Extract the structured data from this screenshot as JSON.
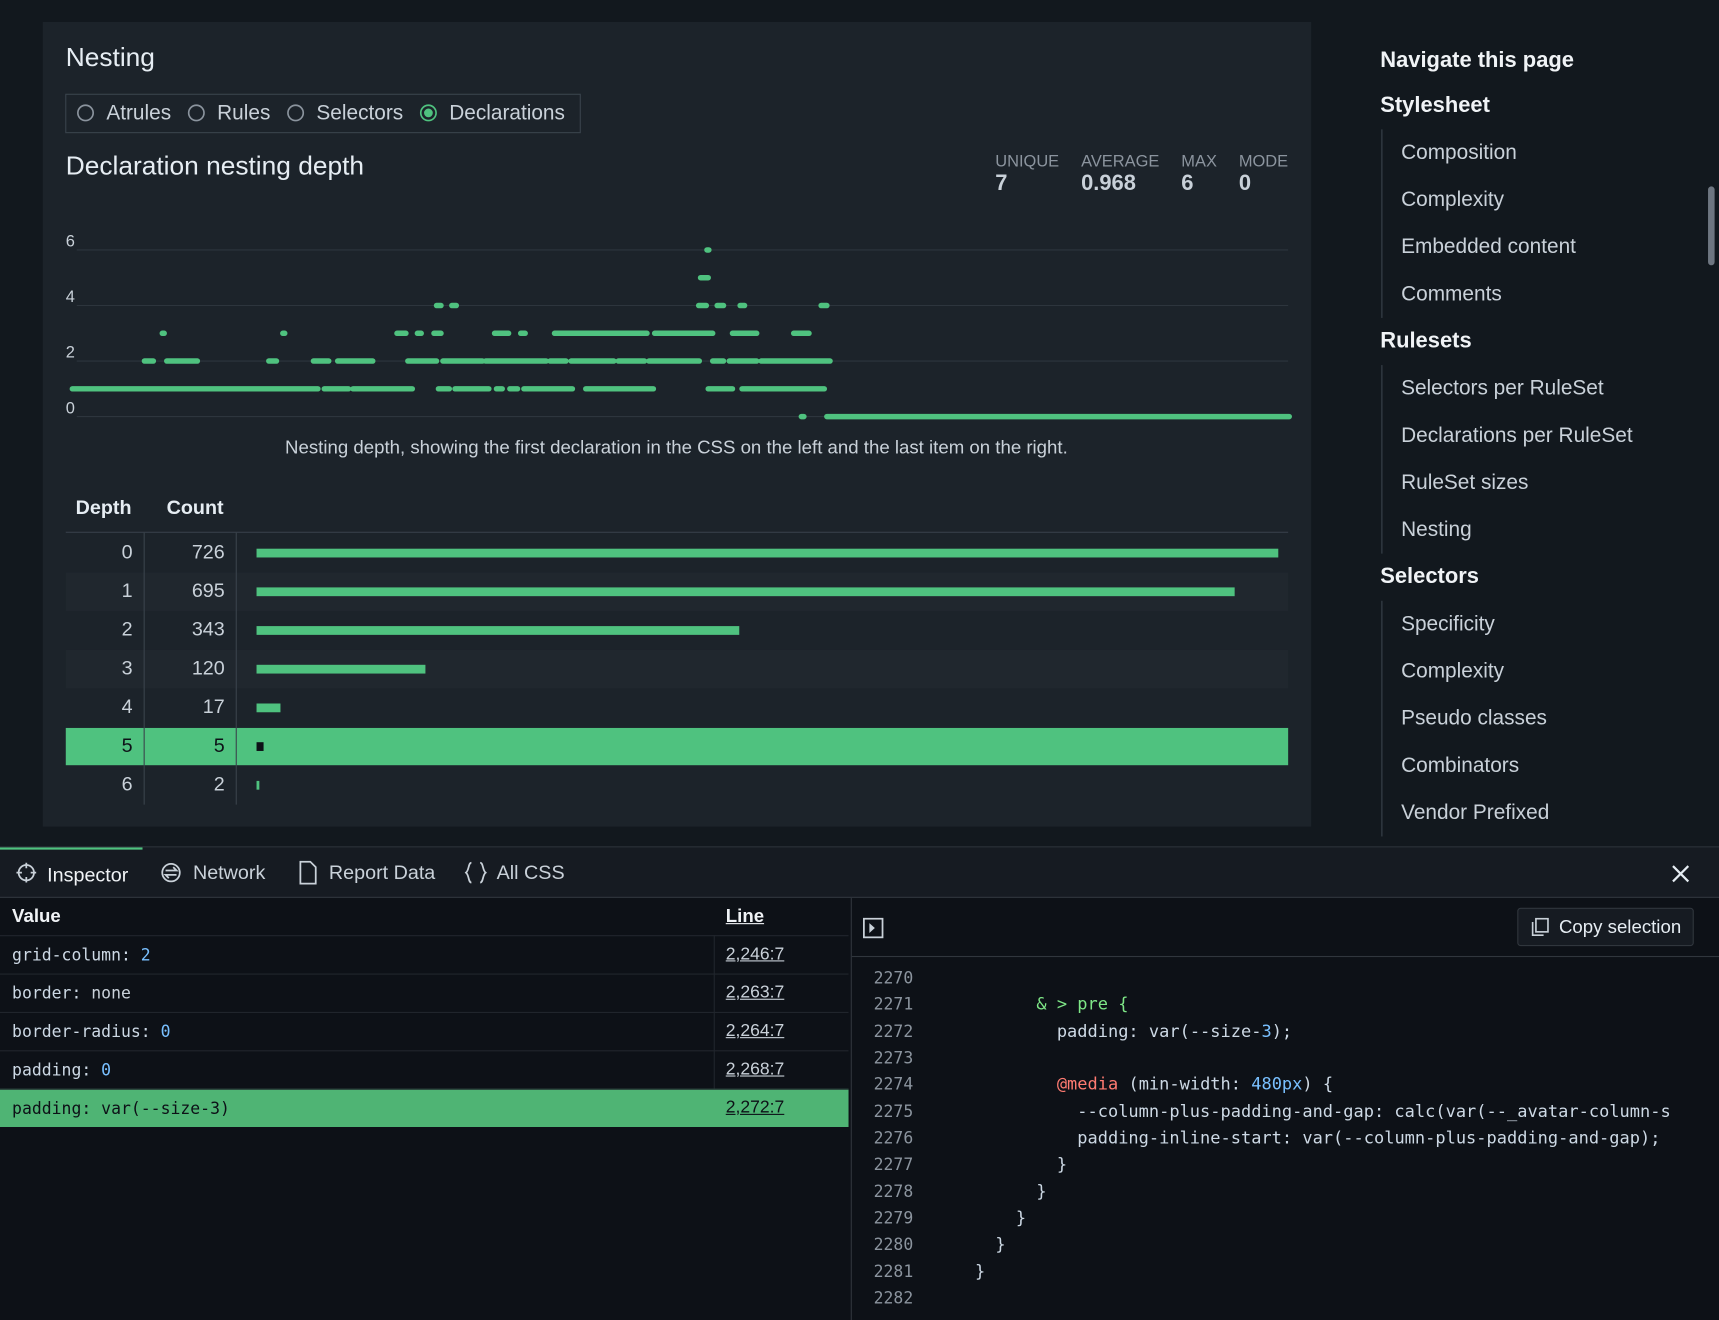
{
  "nesting": {
    "heading": "Nesting",
    "options": [
      {
        "label": "Atrules",
        "checked": false
      },
      {
        "label": "Rules",
        "checked": false
      },
      {
        "label": "Selectors",
        "checked": false
      },
      {
        "label": "Declarations",
        "checked": true
      }
    ]
  },
  "chart_data": {
    "type": "scatter",
    "title": "Declaration nesting depth",
    "stats": [
      {
        "label": "UNIQUE",
        "value": 7
      },
      {
        "label": "AVERAGE",
        "value": 0.968
      },
      {
        "label": "MAX",
        "value": 6
      },
      {
        "label": "MODE",
        "value": 0
      }
    ],
    "caption": "Nesting depth, showing the first declaration in the CSS on the left and the last item on the right.",
    "xlim": [
      0,
      1908
    ],
    "ylim": [
      0,
      6
    ],
    "yticks": [
      0,
      2,
      4,
      6
    ],
    "grid": true,
    "color": "#4fc27f",
    "runs": [
      {
        "depth": 0,
        "from": 1143,
        "to": 1147
      },
      {
        "depth": 0,
        "from": 1183,
        "to": 1908
      },
      {
        "depth": 1,
        "from": 0,
        "to": 385
      },
      {
        "depth": 1,
        "from": 395,
        "to": 433
      },
      {
        "depth": 1,
        "from": 440,
        "to": 533
      },
      {
        "depth": 1,
        "from": 574,
        "to": 591
      },
      {
        "depth": 1,
        "from": 600,
        "to": 653
      },
      {
        "depth": 1,
        "from": 665,
        "to": 674
      },
      {
        "depth": 1,
        "from": 686,
        "to": 698
      },
      {
        "depth": 1,
        "from": 708,
        "to": 784
      },
      {
        "depth": 1,
        "from": 805,
        "to": 911
      },
      {
        "depth": 1,
        "from": 997,
        "to": 1035
      },
      {
        "depth": 1,
        "from": 1050,
        "to": 1179
      },
      {
        "depth": 2,
        "from": 113,
        "to": 127
      },
      {
        "depth": 2,
        "from": 148,
        "to": 196
      },
      {
        "depth": 2,
        "from": 308,
        "to": 320
      },
      {
        "depth": 2,
        "from": 378,
        "to": 402
      },
      {
        "depth": 2,
        "from": 416,
        "to": 471
      },
      {
        "depth": 2,
        "from": 526,
        "to": 571
      },
      {
        "depth": 2,
        "from": 581,
        "to": 643
      },
      {
        "depth": 2,
        "from": 648,
        "to": 743
      },
      {
        "depth": 2,
        "from": 749,
        "to": 774
      },
      {
        "depth": 2,
        "from": 782,
        "to": 849
      },
      {
        "depth": 2,
        "from": 856,
        "to": 897
      },
      {
        "depth": 2,
        "from": 904,
        "to": 983
      },
      {
        "depth": 2,
        "from": 1004,
        "to": 1021
      },
      {
        "depth": 2,
        "from": 1030,
        "to": 1073
      },
      {
        "depth": 2,
        "from": 1080,
        "to": 1188
      },
      {
        "depth": 3,
        "from": 141,
        "to": 144
      },
      {
        "depth": 3,
        "from": 330,
        "to": 333
      },
      {
        "depth": 3,
        "from": 509,
        "to": 523
      },
      {
        "depth": 3,
        "from": 541,
        "to": 547
      },
      {
        "depth": 3,
        "from": 567,
        "to": 578
      },
      {
        "depth": 3,
        "from": 662,
        "to": 684
      },
      {
        "depth": 3,
        "from": 703,
        "to": 710
      },
      {
        "depth": 3,
        "from": 756,
        "to": 901
      },
      {
        "depth": 3,
        "from": 913,
        "to": 1004
      },
      {
        "depth": 3,
        "from": 1035,
        "to": 1073
      },
      {
        "depth": 3,
        "from": 1131,
        "to": 1155
      },
      {
        "depth": 4,
        "from": 571,
        "to": 578
      },
      {
        "depth": 4,
        "from": 595,
        "to": 602
      },
      {
        "depth": 4,
        "from": 982,
        "to": 994
      },
      {
        "depth": 4,
        "from": 1011,
        "to": 1021
      },
      {
        "depth": 4,
        "from": 1047,
        "to": 1054
      },
      {
        "depth": 4,
        "from": 1174,
        "to": 1183
      },
      {
        "depth": 5,
        "from": 985,
        "to": 997
      },
      {
        "depth": 6,
        "from": 995,
        "to": 998
      }
    ]
  },
  "depth_table": {
    "headers": [
      "Depth",
      "Count"
    ],
    "color": "#4fc27f",
    "rows": [
      {
        "depth": 0,
        "count": 726
      },
      {
        "depth": 1,
        "count": 695
      },
      {
        "depth": 2,
        "count": 343
      },
      {
        "depth": 3,
        "count": 120
      },
      {
        "depth": 4,
        "count": 17
      },
      {
        "depth": 5,
        "count": 5,
        "highlighted": true
      },
      {
        "depth": 6,
        "count": 2
      }
    ]
  },
  "navigation": {
    "title": "Navigate this page",
    "groups": [
      {
        "title": "Stylesheet",
        "items": [
          "Composition",
          "Complexity",
          "Embedded content",
          "Comments"
        ]
      },
      {
        "title": "Rulesets",
        "items": [
          "Selectors per RuleSet",
          "Declarations per RuleSet",
          "RuleSet sizes",
          "Nesting"
        ]
      },
      {
        "title": "Selectors",
        "items": [
          "Specificity",
          "Complexity",
          "Pseudo classes",
          "Combinators",
          "Vendor Prefixed"
        ]
      }
    ]
  },
  "devtools": {
    "tabs": [
      {
        "label": "Inspector",
        "active": true
      },
      {
        "label": "Network"
      },
      {
        "label": "Report Data"
      },
      {
        "label": "All CSS"
      }
    ],
    "inspector": {
      "headers": [
        "Value",
        "Line"
      ],
      "rows": [
        {
          "value": "grid-column: 2",
          "line": "2,246:7"
        },
        {
          "value": "border: none",
          "line": "2,263:7"
        },
        {
          "value": "border-radius: 0",
          "line": "2,264:7"
        },
        {
          "value": "padding: 0",
          "line": "2,268:7"
        },
        {
          "value": "padding: var(--size-3)",
          "line": "2,272:7",
          "selected": true
        }
      ]
    },
    "copy_button": "Copy selection",
    "code": [
      {
        "number": 2270
      },
      {
        "number": 2271,
        "code": "          & > pre {"
      },
      {
        "number": 2272,
        "code": "            padding: var(--size-3);"
      },
      {
        "number": 2273
      },
      {
        "number": 2274,
        "code": "            @media (min-width: 480px) {"
      },
      {
        "number": 2275,
        "code": "              --column-plus-padding-and-gap: calc(var(--_avatar-column-s"
      },
      {
        "number": 2276,
        "code": "              padding-inline-start: var(--column-plus-padding-and-gap);"
      },
      {
        "number": 2277,
        "code": "            }"
      },
      {
        "number": 2278,
        "code": "          }"
      },
      {
        "number": 2279,
        "code": "        }"
      },
      {
        "number": 2280,
        "code": "      }"
      },
      {
        "number": 2281,
        "code": "    }"
      },
      {
        "number": 2282
      }
    ]
  }
}
